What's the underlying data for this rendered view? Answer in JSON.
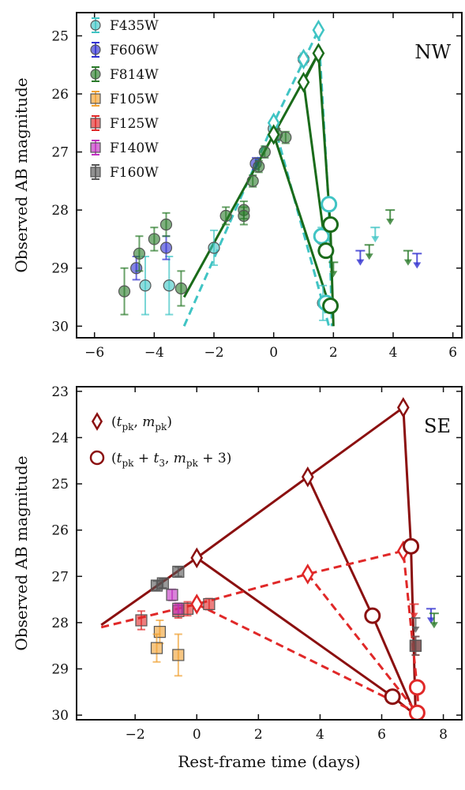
{
  "chart_data": [
    {
      "type": "scatter",
      "panel_label": "NW",
      "xlabel": "",
      "ylabel": "Observed AB magnitude",
      "xlim": [
        -6.6,
        6.3
      ],
      "ylim": [
        30.2,
        24.6
      ],
      "y_inverted": true,
      "xticks": [
        -6,
        -4,
        -2,
        0,
        2,
        4,
        6
      ],
      "yticks": [
        25,
        26,
        27,
        28,
        29,
        30
      ],
      "grid": false,
      "legend_placement": "top-left",
      "legend": [
        {
          "label": "F435W",
          "color": "#40c4c4",
          "marker": "circle"
        },
        {
          "label": "F606W",
          "color": "#3030d0",
          "marker": "circle"
        },
        {
          "label": "F814W",
          "color": "#2a7a2a",
          "marker": "circle"
        },
        {
          "label": "F105W",
          "color": "#f0a030",
          "marker": "square"
        },
        {
          "label": "F125W",
          "color": "#e02828",
          "marker": "square"
        },
        {
          "label": "F140W",
          "color": "#c030c0",
          "marker": "square"
        },
        {
          "label": "F160W",
          "color": "#555555",
          "marker": "square"
        }
      ],
      "series": [
        {
          "name": "F435W",
          "color": "#40c4c4",
          "marker": "circle",
          "points": [
            {
              "x": -4.3,
              "y": 29.3,
              "err": 0.5
            },
            {
              "x": -3.5,
              "y": 29.3,
              "err": 0.5
            },
            {
              "x": -2.0,
              "y": 28.65,
              "err": 0.3
            },
            {
              "x": 0.0,
              "y": 26.6,
              "err": 0.12
            },
            {
              "x": 1.0,
              "y": 25.4,
              "err": 0.1
            },
            {
              "x": 1.6,
              "y": 28.5,
              "err": 0.2
            },
            {
              "x": 1.65,
              "y": 29.6,
              "err": 0.3
            }
          ]
        },
        {
          "name": "F606W",
          "color": "#3030d0",
          "marker": "circle",
          "points": [
            {
              "x": -4.6,
              "y": 29.0,
              "err": 0.2
            },
            {
              "x": -3.6,
              "y": 28.65,
              "err": 0.2
            },
            {
              "x": -0.6,
              "y": 27.2,
              "err": 0.1
            }
          ]
        },
        {
          "name": "F814W",
          "color": "#2a7a2a",
          "marker": "circle",
          "points": [
            {
              "x": -5.0,
              "y": 29.4,
              "err": 0.4
            },
            {
              "x": -4.5,
              "y": 28.75,
              "err": 0.3
            },
            {
              "x": -4.0,
              "y": 28.5,
              "err": 0.2
            },
            {
              "x": -3.6,
              "y": 28.25,
              "err": 0.2
            },
            {
              "x": -3.1,
              "y": 29.35,
              "err": 0.3
            },
            {
              "x": -1.6,
              "y": 28.1,
              "err": 0.15
            },
            {
              "x": -1.0,
              "y": 28.0,
              "err": 0.15
            },
            {
              "x": -1.0,
              "y": 28.1,
              "err": 0.15
            },
            {
              "x": -0.5,
              "y": 27.25,
              "err": 0.1
            },
            {
              "x": -0.3,
              "y": 27.0,
              "err": 0.1
            },
            {
              "x": -0.7,
              "y": 27.5,
              "err": 0.1
            },
            {
              "x": 0.1,
              "y": 26.7,
              "err": 0.1
            },
            {
              "x": 0.4,
              "y": 26.75,
              "err": 0.1
            }
          ]
        }
      ],
      "upper_limits": [
        {
          "x": 2.9,
          "y": 28.7,
          "color": "#3030d0"
        },
        {
          "x": 3.2,
          "y": 28.6,
          "color": "#2a7a2a"
        },
        {
          "x": 3.4,
          "y": 28.3,
          "color": "#40c4c4"
        },
        {
          "x": 3.9,
          "y": 28.0,
          "color": "#2a7a2a"
        },
        {
          "x": 4.5,
          "y": 28.7,
          "color": "#2a7a2a"
        },
        {
          "x": 4.8,
          "y": 28.75,
          "color": "#3030d0"
        },
        {
          "x": 2.0,
          "y": 28.9,
          "color": "#2a7a2a"
        }
      ],
      "model_lines": [
        {
          "color": "#40c4c4",
          "dash": true,
          "points": [
            [
              -3.0,
              30.0
            ],
            [
              0.0,
              26.5
            ],
            [
              1.5,
              24.9
            ],
            [
              1.85,
              28.0
            ],
            [
              1.95,
              30.0
            ]
          ]
        },
        {
          "color": "#40c4c4",
          "dash": true,
          "points": [
            [
              0.0,
              26.5
            ],
            [
              1.85,
              30.0
            ]
          ]
        },
        {
          "color": "#1a6b1a",
          "dash": false,
          "points": [
            [
              -3.0,
              29.5
            ],
            [
              0.0,
              26.7
            ],
            [
              1.5,
              25.3
            ],
            [
              1.9,
              28.3
            ],
            [
              2.0,
              30.0
            ]
          ]
        },
        {
          "color": "#1a6b1a",
          "dash": false,
          "points": [
            [
              0.0,
              26.7
            ],
            [
              1.9,
              29.7
            ]
          ]
        },
        {
          "color": "#1a6b1a",
          "dash": false,
          "points": [
            [
              1.0,
              25.8
            ],
            [
              1.75,
              28.7
            ]
          ]
        },
        {
          "color": "#1a6b1a",
          "dash": false,
          "points": [
            [
              1.0,
              25.8
            ],
            [
              1.5,
              25.3
            ]
          ]
        }
      ],
      "peak_markers": [
        {
          "x": 1.5,
          "y": 24.9,
          "color": "#40c4c4"
        },
        {
          "x": 1.0,
          "y": 25.4,
          "color": "#40c4c4"
        },
        {
          "x": 0.0,
          "y": 26.5,
          "color": "#40c4c4"
        },
        {
          "x": 1.5,
          "y": 25.3,
          "color": "#1a6b1a"
        },
        {
          "x": 1.0,
          "y": 25.8,
          "color": "#1a6b1a"
        },
        {
          "x": 0.0,
          "y": 26.7,
          "color": "#1a6b1a"
        }
      ],
      "t3_markers": [
        {
          "x": 1.85,
          "y": 27.9,
          "color": "#40c4c4"
        },
        {
          "x": 1.6,
          "y": 28.45,
          "color": "#40c4c4"
        },
        {
          "x": 1.75,
          "y": 29.6,
          "color": "#40c4c4"
        },
        {
          "x": 1.9,
          "y": 28.25,
          "color": "#1a6b1a"
        },
        {
          "x": 1.75,
          "y": 28.7,
          "color": "#1a6b1a"
        },
        {
          "x": 1.9,
          "y": 29.65,
          "color": "#1a6b1a"
        }
      ]
    },
    {
      "type": "scatter",
      "panel_label": "SE",
      "xlabel": "Rest-frame time (days)",
      "ylabel": "Observed AB magnitude",
      "xlim": [
        -3.9,
        8.6
      ],
      "ylim": [
        30.1,
        22.9
      ],
      "y_inverted": true,
      "xticks": [
        -2,
        0,
        2,
        4,
        6,
        8
      ],
      "yticks": [
        23,
        24,
        25,
        26,
        27,
        28,
        29,
        30
      ],
      "grid": false,
      "legend_placement": "top-left",
      "legend": [
        {
          "label": "(t_pk, m_pk)",
          "color": "#8b1010",
          "marker": "diamond"
        },
        {
          "label": "(t_pk + t_3, m_pk + 3)",
          "color": "#8b1010",
          "marker": "circle"
        }
      ],
      "series": [
        {
          "name": "F105W",
          "color": "#f0a030",
          "marker": "square",
          "points": [
            {
              "x": -1.2,
              "y": 28.2,
              "err": 0.25
            },
            {
              "x": -1.3,
              "y": 28.55,
              "err": 0.3
            },
            {
              "x": -0.6,
              "y": 28.7,
              "err": 0.45
            }
          ]
        },
        {
          "name": "F125W",
          "color": "#e02828",
          "marker": "square",
          "points": [
            {
              "x": -1.8,
              "y": 27.95,
              "err": 0.2
            },
            {
              "x": -0.6,
              "y": 27.75,
              "err": 0.15
            },
            {
              "x": -0.3,
              "y": 27.7,
              "err": 0.15
            },
            {
              "x": 0.4,
              "y": 27.6,
              "err": 0.12
            },
            {
              "x": 7.1,
              "y": 28.5,
              "err": 0.2
            }
          ]
        },
        {
          "name": "F140W",
          "color": "#c030c0",
          "marker": "square",
          "points": [
            {
              "x": -0.8,
              "y": 27.4,
              "err": 0.12
            },
            {
              "x": -0.6,
              "y": 27.7,
              "err": 0.12
            }
          ]
        },
        {
          "name": "F160W",
          "color": "#555555",
          "marker": "square",
          "points": [
            {
              "x": -1.3,
              "y": 27.2,
              "err": 0.1
            },
            {
              "x": -1.1,
              "y": 27.15,
              "err": 0.1
            },
            {
              "x": -0.6,
              "y": 26.9,
              "err": 0.1
            },
            {
              "x": 7.1,
              "y": 28.5,
              "err": 0.2
            }
          ]
        }
      ],
      "upper_limits": [
        {
          "x": 7.05,
          "y": 27.6,
          "color": "#e02828"
        },
        {
          "x": 7.6,
          "y": 27.7,
          "color": "#3030d0"
        },
        {
          "x": 7.7,
          "y": 27.8,
          "color": "#2a7a2a"
        },
        {
          "x": 7.1,
          "y": 27.9,
          "color": "#555555"
        }
      ],
      "model_lines": [
        {
          "color": "#8b1010",
          "dash": false,
          "points": [
            [
              -3.1,
              28.05
            ],
            [
              0.0,
              26.6
            ],
            [
              3.6,
              24.85
            ],
            [
              6.7,
              23.35
            ],
            [
              6.95,
              26.35
            ],
            [
              7.1,
              30.0
            ]
          ]
        },
        {
          "color": "#8b1010",
          "dash": false,
          "points": [
            [
              0.0,
              26.6
            ],
            [
              6.35,
              29.6
            ],
            [
              7.1,
              30.0
            ]
          ]
        },
        {
          "color": "#8b1010",
          "dash": false,
          "points": [
            [
              3.6,
              24.85
            ],
            [
              5.7,
              27.85
            ],
            [
              7.1,
              30.0
            ]
          ]
        },
        {
          "color": "#e02828",
          "dash": true,
          "points": [
            [
              -3.1,
              28.1
            ],
            [
              0.0,
              27.6
            ],
            [
              3.6,
              26.95
            ],
            [
              6.7,
              26.45
            ],
            [
              7.15,
              29.4
            ],
            [
              7.2,
              30.0
            ]
          ]
        },
        {
          "color": "#e02828",
          "dash": true,
          "points": [
            [
              0.0,
              27.6
            ],
            [
              7.15,
              29.95
            ]
          ]
        },
        {
          "color": "#e02828",
          "dash": true,
          "points": [
            [
              3.6,
              26.95
            ],
            [
              7.15,
              29.95
            ]
          ]
        }
      ],
      "peak_markers": [
        {
          "x": 6.7,
          "y": 23.35,
          "color": "#8b1010"
        },
        {
          "x": 3.6,
          "y": 24.85,
          "color": "#8b1010"
        },
        {
          "x": 0.0,
          "y": 26.6,
          "color": "#8b1010"
        },
        {
          "x": 6.7,
          "y": 26.45,
          "color": "#e02828"
        },
        {
          "x": 3.6,
          "y": 26.95,
          "color": "#e02828"
        },
        {
          "x": 0.0,
          "y": 27.6,
          "color": "#e02828"
        }
      ],
      "t3_markers": [
        {
          "x": 6.95,
          "y": 26.35,
          "color": "#8b1010"
        },
        {
          "x": 5.7,
          "y": 27.85,
          "color": "#8b1010"
        },
        {
          "x": 6.35,
          "y": 29.6,
          "color": "#8b1010"
        },
        {
          "x": 7.15,
          "y": 29.4,
          "color": "#e02828"
        },
        {
          "x": 7.15,
          "y": 29.95,
          "color": "#e02828"
        }
      ]
    }
  ]
}
